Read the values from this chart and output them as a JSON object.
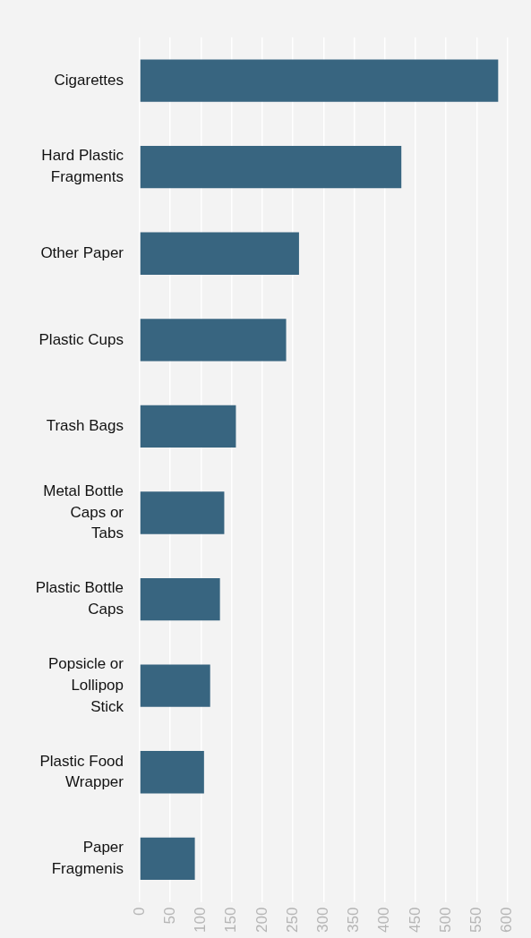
{
  "chart_data": {
    "type": "bar",
    "orientation": "horizontal",
    "categories": [
      "Cigarettes",
      "Hard Plastic Fragments",
      "Other Paper",
      "Plastic Cups",
      "Trash Bags",
      "Metal Bottle Caps or Tabs",
      "Plastic Bottle Caps",
      "Popsicle or Lollipop Stick",
      "Plastic Food Wrapper",
      "Paper Fragmenis"
    ],
    "values": [
      585,
      427,
      260,
      239,
      157,
      138,
      131,
      115,
      105,
      90
    ],
    "color": "#386580",
    "xlim": [
      0,
      600
    ],
    "xticks": [
      0,
      50,
      100,
      150,
      200,
      250,
      300,
      350,
      400,
      450,
      500,
      550,
      600
    ],
    "grid": "x",
    "legend": false
  }
}
